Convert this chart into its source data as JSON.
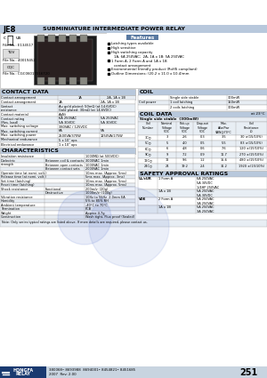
{
  "title_model": "JE8",
  "title_desc": "SUBMINIATURE INTERMEDIATE POWER RELAY",
  "header_bg": "#b8c8dc",
  "light_bg": "#e8eef4",
  "white": "#ffffff",
  "border_color": "#aaaaaa",
  "features_header_bg": "#5878a0",
  "contact_rows": [
    [
      "Contact arrangement",
      "1A",
      "2A, 1A x 1B"
    ],
    [
      "Contact\nresistance",
      "Au gold plated: 50mΩ (at 14.6VDC)\nGold plated: 30mΩ (at 14.6VDC)",
      ""
    ],
    [
      "Contact material",
      "AgNi",
      ""
    ],
    [
      "Contact rating\n(Res. load)",
      "6A 250VAC\n5A 30VDC",
      "5A 250VAC\n5A 30VDC"
    ],
    [
      "Max. switching voltage",
      "380VAC / 125VDC",
      ""
    ],
    [
      "Max. switching current",
      "6A",
      "5A"
    ],
    [
      "Max. switching power",
      "2500VA/370W",
      "1250VA/175W"
    ],
    [
      "Mechanical endurance",
      "5 x 10⁷ ops",
      ""
    ],
    [
      "Electrical endurance",
      "1 x 10⁵ ops",
      ""
    ]
  ],
  "contact_row_heights": [
    5,
    9,
    5,
    9,
    5,
    5,
    5,
    5,
    5
  ],
  "char_rows": [
    [
      "Insulation resistance",
      "",
      "1000MΩ (at 500VDC)",
      5
    ],
    [
      "Dielectric\nstrength",
      "Between coil & contacts",
      "3000VAC 1min",
      5
    ],
    [
      "",
      "Between open contacts",
      "1000VAC 1min",
      4.5
    ],
    [
      "",
      "Between contact sets",
      "2000VAC 1min",
      4.5
    ],
    [
      "Operate time (at nomi. volt.)",
      "",
      "10ms max. (Approx. 5ms)",
      4.5
    ],
    [
      "Release time (at nomi. volt.)",
      "",
      "5ms max. (Approx. 3ms)",
      4.5
    ],
    [
      "Set time (latching)",
      "",
      "10ms max. (Approx. 5ms)",
      4.5
    ],
    [
      "Reset time (latching)",
      "",
      "10ms max. (Approx. 5ms)",
      4.5
    ],
    [
      "Shock resistance",
      "Functional",
      "200m/s² (20g)",
      4.5
    ],
    [
      "",
      "Destructive",
      "1000m/s² (100g)",
      4.5
    ],
    [
      "Vibration resistance",
      "",
      "10Hz to 55Hz  2.0mm EA",
      4.5
    ],
    [
      "Humidity",
      "",
      "5% to 85% RH",
      4.5
    ],
    [
      "Ambient temperature",
      "",
      "-40°C to 70°C",
      4.5
    ],
    [
      "Termination",
      "",
      "PCB",
      4.5
    ],
    [
      "Weight",
      "",
      "Approx 4.7g",
      4.5
    ],
    [
      "Construction",
      "",
      "Wash tight, Flux proof (Sealed)",
      4.5
    ]
  ],
  "coil_power_rows": [
    [
      "",
      "Single side stable",
      "300mW"
    ],
    [
      "Coil power",
      "1 coil latching",
      "150mW"
    ],
    [
      "",
      "2 coils latching",
      "300mW"
    ]
  ],
  "coil_data_rows": [
    [
      "3C○",
      "3",
      "2.6",
      "0.3",
      "3.5",
      "30 ±(15/10%)"
    ],
    [
      "5C○",
      "5",
      "4.0",
      "0.5",
      "5.5",
      "83 ±(15/10%)"
    ],
    [
      "6C○",
      "6",
      "4.8",
      "0.6",
      "7.6",
      "120 ±(15/10%)"
    ],
    [
      "9C○",
      "9",
      "7.2",
      "0.9",
      "11.7",
      "270 ±(15/10%)"
    ],
    [
      "12C○",
      "12",
      "9.6",
      "1.2",
      "15.6",
      "480 ±(15/10%)"
    ],
    [
      "24C○",
      "24",
      "19.2",
      "2.4",
      "31.2",
      "1920 ±(15/10%)"
    ]
  ],
  "coil_col_headers": [
    "Coil\nNumber",
    "Nominal\nVoltage\nVDC",
    "Pick-up\nVoltage\nVDC",
    "Drop-out\nVoltage\nVDC",
    "Max.\nAllw.Pwr\nVAW@70°C",
    "Coil\nResistance\nΩ"
  ],
  "safety_rows": [
    [
      "UL/cUR",
      "1 Form A",
      "6A 250VAC\n5A 30VDC\n1/4HP 250VAC",
      14
    ],
    [
      "",
      "1A x 1B",
      "5A 250VAC\n5A 30VDC",
      9
    ],
    [
      "VDE",
      "2 Form A",
      "5A 250VAC\n3A 250VAC",
      9
    ],
    [
      "",
      "1A x 1B",
      "5A 250VAC\n3A 250VAC",
      9
    ]
  ],
  "features": [
    [
      "bullet",
      "Latching types available"
    ],
    [
      "bullet",
      "High sensitive"
    ],
    [
      "bullet",
      "High switching capacity"
    ],
    [
      "indent",
      "1A, 6A 250VAC;  2A, 1A x 1B: 5A 250VAC"
    ],
    [
      "bullet",
      "1 Form A, 2 Form A and 1A x 1B"
    ],
    [
      "indent",
      "contact arrangement"
    ],
    [
      "bullet",
      "Environmental friendly product (RoHS compliant)"
    ],
    [
      "bullet",
      "Outline Dimensions: (20.2 x 11.0 x 10.4)mm"
    ]
  ]
}
